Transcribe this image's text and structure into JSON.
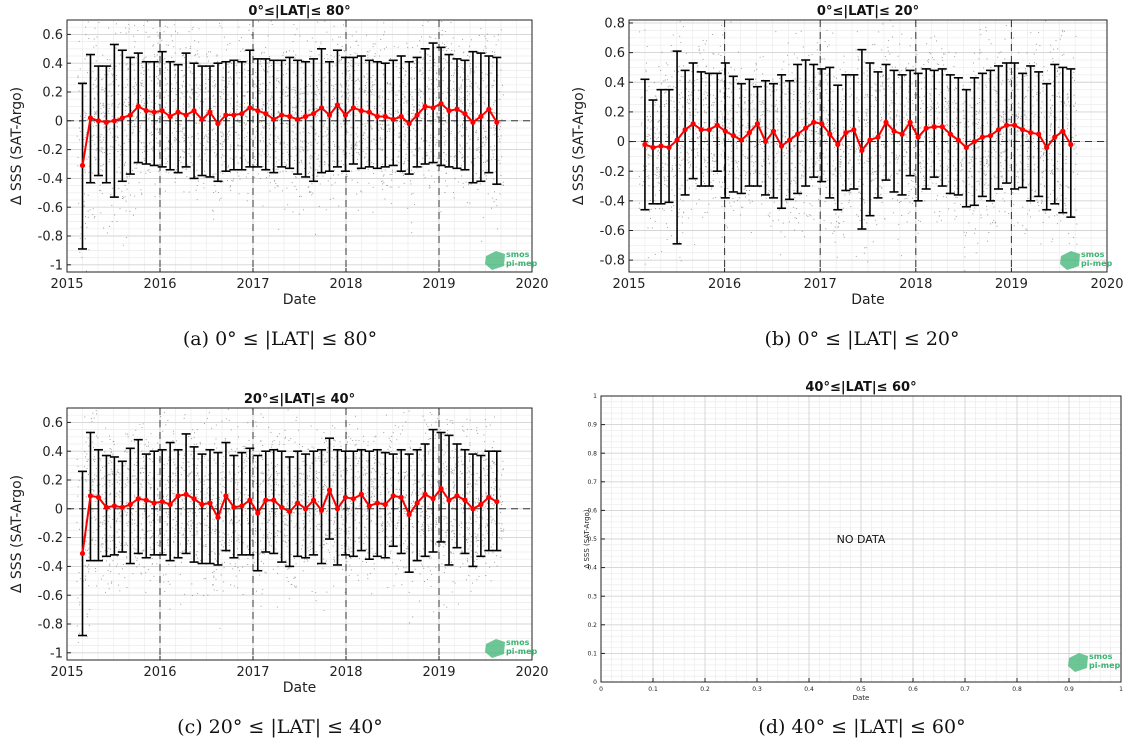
{
  "panels": [
    {
      "caption": "(a) 0° ≤ |LAT| ≤ 80°"
    },
    {
      "caption": "(b) 0° ≤ |LAT| ≤ 20°"
    },
    {
      "caption": "(c) 20° ≤ |LAT| ≤ 40°"
    },
    {
      "caption": "(d) 40° ≤ |LAT| ≤ 60°"
    }
  ],
  "logo_text": [
    "smos",
    "pi-mep"
  ],
  "colors": {
    "mean_line": "#ff0000",
    "error_bar": "#000000",
    "scatter": "#555555",
    "logo": "#3cb371"
  },
  "chart_data": [
    {
      "type": "errorbar",
      "title": "0°≤|LAT|≤ 80°",
      "xlabel": "Date",
      "ylabel": "Δ SSS (SAT-Argo)",
      "xlim": [
        "2015-01-01",
        "2020-01-01"
      ],
      "ylim": [
        -1.05,
        0.7
      ],
      "xticks": [
        "2015",
        "2016",
        "2017",
        "2018",
        "2019",
        "2020"
      ],
      "yticks": [
        -1,
        -0.8,
        -0.6,
        -0.4,
        -0.2,
        0,
        0.2,
        0.4,
        0.6
      ],
      "ytick_labels": [
        "-1",
        "-0.8",
        "-0.6",
        "-0.4",
        "-0.2",
        "0",
        "0.2",
        "0.4",
        "0.6"
      ],
      "grid": true,
      "dashed_year_lines": [
        "2016",
        "2017",
        "2018",
        "2019"
      ],
      "zero_line": true,
      "series": [
        {
          "mean": [
            -0.31,
            0.02,
            0.0,
            -0.01,
            0.0,
            0.02,
            0.04,
            0.1,
            0.07,
            0.06,
            0.07,
            0.03,
            0.06,
            0.04,
            0.07,
            0.01,
            0.06,
            -0.02,
            0.04,
            0.04,
            0.05,
            0.09,
            0.07,
            0.05,
            0.01,
            0.04,
            0.03,
            0.01,
            0.03,
            0.05,
            0.09,
            0.04,
            0.11,
            0.04,
            0.09,
            0.07,
            0.06,
            0.03,
            0.03,
            0.01,
            0.03,
            -0.02,
            0.04,
            0.1,
            0.09,
            0.12,
            0.07,
            0.08,
            0.05,
            -0.01,
            0.03,
            0.08,
            -0.01
          ],
          "upper": [
            0.26,
            0.46,
            0.38,
            0.38,
            0.53,
            0.49,
            0.44,
            0.47,
            0.41,
            0.41,
            0.48,
            0.41,
            0.39,
            0.47,
            0.4,
            0.38,
            0.38,
            0.4,
            0.41,
            0.42,
            0.41,
            0.49,
            0.43,
            0.43,
            0.42,
            0.42,
            0.44,
            0.42,
            0.41,
            0.43,
            0.5,
            0.41,
            0.49,
            0.44,
            0.44,
            0.45,
            0.42,
            0.41,
            0.4,
            0.42,
            0.45,
            0.41,
            0.44,
            0.5,
            0.54,
            0.51,
            0.46,
            0.43,
            0.42,
            0.48,
            0.47,
            0.45,
            0.44
          ],
          "lower": [
            -0.89,
            -0.43,
            -0.38,
            -0.43,
            -0.53,
            -0.42,
            -0.37,
            -0.29,
            -0.3,
            -0.31,
            -0.32,
            -0.34,
            -0.36,
            -0.32,
            -0.4,
            -0.38,
            -0.39,
            -0.42,
            -0.35,
            -0.34,
            -0.34,
            -0.32,
            -0.32,
            -0.34,
            -0.36,
            -0.32,
            -0.33,
            -0.37,
            -0.39,
            -0.42,
            -0.36,
            -0.35,
            -0.32,
            -0.35,
            -0.3,
            -0.33,
            -0.32,
            -0.33,
            -0.32,
            -0.31,
            -0.35,
            -0.37,
            -0.32,
            -0.3,
            -0.29,
            -0.31,
            -0.32,
            -0.33,
            -0.34,
            -0.43,
            -0.42,
            -0.36,
            -0.44
          ]
        }
      ]
    },
    {
      "type": "errorbar",
      "title": "0°≤|LAT|≤ 20°",
      "xlabel": "Date",
      "ylabel": "Δ SSS (SAT-Argo)",
      "xlim": [
        "2015-01-01",
        "2020-01-01"
      ],
      "ylim": [
        -0.88,
        0.82
      ],
      "xticks": [
        "2015",
        "2016",
        "2017",
        "2018",
        "2019",
        "2020"
      ],
      "yticks": [
        -0.8,
        -0.6,
        -0.4,
        -0.2,
        0,
        0.2,
        0.4,
        0.6,
        0.8
      ],
      "ytick_labels": [
        "-0.8",
        "-0.6",
        "-0.4",
        "-0.2",
        "0",
        "0.2",
        "0.4",
        "0.6",
        "0.8"
      ],
      "grid": true,
      "dashed_year_lines": [
        "2016",
        "2017",
        "2018",
        "2019"
      ],
      "zero_line": true,
      "series": [
        {
          "mean": [
            -0.02,
            -0.04,
            -0.03,
            -0.04,
            0.01,
            0.08,
            0.12,
            0.08,
            0.08,
            0.11,
            0.07,
            0.04,
            0.01,
            0.06,
            0.12,
            0.0,
            0.07,
            -0.03,
            0.01,
            0.05,
            0.09,
            0.13,
            0.12,
            0.05,
            -0.02,
            0.06,
            0.08,
            -0.06,
            0.01,
            0.03,
            0.13,
            0.07,
            0.05,
            0.13,
            0.03,
            0.09,
            0.1,
            0.1,
            0.05,
            0.01,
            -0.04,
            0.0,
            0.03,
            0.04,
            0.08,
            0.11,
            0.11,
            0.08,
            0.06,
            0.05,
            -0.04,
            0.03,
            0.07,
            -0.02
          ],
          "upper": [
            0.42,
            0.28,
            0.35,
            0.35,
            0.61,
            0.48,
            0.53,
            0.47,
            0.46,
            0.46,
            0.53,
            0.44,
            0.39,
            0.42,
            0.37,
            0.41,
            0.39,
            0.45,
            0.41,
            0.52,
            0.55,
            0.52,
            0.49,
            0.5,
            0.38,
            0.45,
            0.45,
            0.62,
            0.53,
            0.47,
            0.52,
            0.48,
            0.45,
            0.48,
            0.46,
            0.49,
            0.48,
            0.49,
            0.45,
            0.43,
            0.35,
            0.43,
            0.46,
            0.48,
            0.51,
            0.53,
            0.53,
            0.46,
            0.51,
            0.47,
            0.39,
            0.52,
            0.5,
            0.49
          ],
          "lower": [
            -0.46,
            -0.42,
            -0.42,
            -0.41,
            -0.69,
            -0.36,
            -0.25,
            -0.3,
            -0.3,
            -0.2,
            -0.38,
            -0.34,
            -0.35,
            -0.3,
            -0.3,
            -0.36,
            -0.38,
            -0.45,
            -0.39,
            -0.35,
            -0.3,
            -0.24,
            -0.27,
            -0.38,
            -0.46,
            -0.33,
            -0.32,
            -0.59,
            -0.5,
            -0.38,
            -0.26,
            -0.34,
            -0.36,
            -0.23,
            -0.4,
            -0.32,
            -0.24,
            -0.3,
            -0.35,
            -0.36,
            -0.44,
            -0.43,
            -0.37,
            -0.4,
            -0.32,
            -0.28,
            -0.32,
            -0.31,
            -0.4,
            -0.37,
            -0.46,
            -0.42,
            -0.48,
            -0.51
          ]
        }
      ]
    },
    {
      "type": "errorbar",
      "title": "20°≤|LAT|≤ 40°",
      "xlabel": "Date",
      "ylabel": "Δ SSS (SAT-Argo)",
      "xlim": [
        "2015-01-01",
        "2020-01-01"
      ],
      "ylim": [
        -1.05,
        0.7
      ],
      "xticks": [
        "2015",
        "2016",
        "2017",
        "2018",
        "2019",
        "2020"
      ],
      "yticks": [
        -1,
        -0.8,
        -0.6,
        -0.4,
        -0.2,
        0,
        0.2,
        0.4,
        0.6
      ],
      "ytick_labels": [
        "-1",
        "-0.8",
        "-0.6",
        "-0.4",
        "-0.2",
        "0",
        "0.2",
        "0.4",
        "0.6"
      ],
      "grid": true,
      "dashed_year_lines": [
        "2016",
        "2017",
        "2018",
        "2019"
      ],
      "zero_line": true,
      "series": [
        {
          "mean": [
            -0.31,
            0.09,
            0.08,
            0.01,
            0.02,
            0.01,
            0.03,
            0.07,
            0.06,
            0.04,
            0.05,
            0.03,
            0.09,
            0.1,
            0.07,
            0.03,
            0.04,
            -0.06,
            0.09,
            0.01,
            0.02,
            0.06,
            -0.03,
            0.06,
            0.06,
            0.01,
            -0.02,
            0.04,
            0.0,
            0.06,
            -0.01,
            0.13,
            0.0,
            0.08,
            0.07,
            0.1,
            0.02,
            0.04,
            0.03,
            0.09,
            0.08,
            -0.04,
            0.04,
            0.1,
            0.07,
            0.14,
            0.06,
            0.09,
            0.06,
            0.0,
            0.03,
            0.08,
            0.05
          ],
          "upper": [
            0.26,
            0.53,
            0.41,
            0.37,
            0.36,
            0.33,
            0.42,
            0.48,
            0.38,
            0.4,
            0.41,
            0.46,
            0.41,
            0.52,
            0.43,
            0.38,
            0.41,
            0.39,
            0.46,
            0.37,
            0.39,
            0.42,
            0.37,
            0.4,
            0.41,
            0.4,
            0.36,
            0.4,
            0.38,
            0.4,
            0.41,
            0.49,
            0.41,
            0.4,
            0.4,
            0.41,
            0.4,
            0.41,
            0.39,
            0.38,
            0.41,
            0.38,
            0.41,
            0.45,
            0.55,
            0.53,
            0.51,
            0.45,
            0.41,
            0.38,
            0.37,
            0.4,
            0.4
          ],
          "lower": [
            -0.88,
            -0.36,
            -0.36,
            -0.33,
            -0.32,
            -0.3,
            -0.38,
            -0.31,
            -0.34,
            -0.32,
            -0.32,
            -0.36,
            -0.34,
            -0.31,
            -0.37,
            -0.38,
            -0.38,
            -0.39,
            -0.29,
            -0.34,
            -0.32,
            -0.32,
            -0.43,
            -0.3,
            -0.31,
            -0.37,
            -0.4,
            -0.33,
            -0.34,
            -0.32,
            -0.38,
            -0.21,
            -0.39,
            -0.32,
            -0.33,
            -0.29,
            -0.35,
            -0.33,
            -0.34,
            -0.26,
            -0.31,
            -0.44,
            -0.36,
            -0.33,
            -0.3,
            -0.23,
            -0.39,
            -0.27,
            -0.31,
            -0.4,
            -0.33,
            -0.29,
            -0.29
          ]
        }
      ]
    },
    {
      "type": "empty",
      "title": "40°≤|LAT|≤ 60°",
      "xlabel": "Date",
      "ylabel": "Δ SSS (SAT-Argo)",
      "xlim": [
        0,
        1
      ],
      "ylim": [
        0,
        1
      ],
      "xticks": [
        0,
        0.1,
        0.2,
        0.3,
        0.4,
        0.5,
        0.6,
        0.7,
        0.8,
        0.9,
        1
      ],
      "xtick_labels": [
        "0",
        "0.1",
        "0.2",
        "0.3",
        "0.4",
        "0.5",
        "0.6",
        "0.7",
        "0.8",
        "0.9",
        "1"
      ],
      "yticks": [
        0,
        0.1,
        0.2,
        0.3,
        0.4,
        0.5,
        0.6,
        0.7,
        0.8,
        0.9,
        1
      ],
      "ytick_labels": [
        "0",
        "0.1",
        "0.2",
        "0.3",
        "0.4",
        "0.5",
        "0.6",
        "0.7",
        "0.8",
        "0.9",
        "1"
      ],
      "grid": true,
      "annotation": "NO DATA",
      "annotation_at": [
        0.5,
        0.5
      ]
    }
  ]
}
